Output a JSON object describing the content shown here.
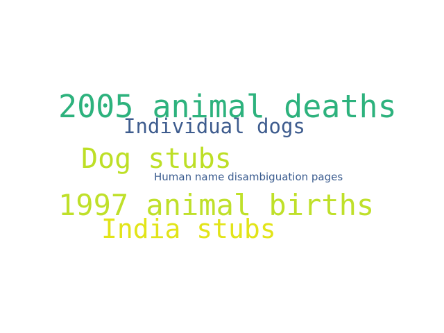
{
  "words": [
    {
      "text": "2005 animal deaths",
      "color": "#2db27d"
    },
    {
      "text": "Individual dogs",
      "color": "#3e5c8e"
    },
    {
      "text": "Dog stubs",
      "color": "#bddf26"
    },
    {
      "text": "Human name disambiguation pages",
      "color": "#3b5c8f"
    },
    {
      "text": "1997 animal births",
      "color": "#bfe02a"
    },
    {
      "text": "India stubs",
      "color": "#e2e418"
    }
  ]
}
